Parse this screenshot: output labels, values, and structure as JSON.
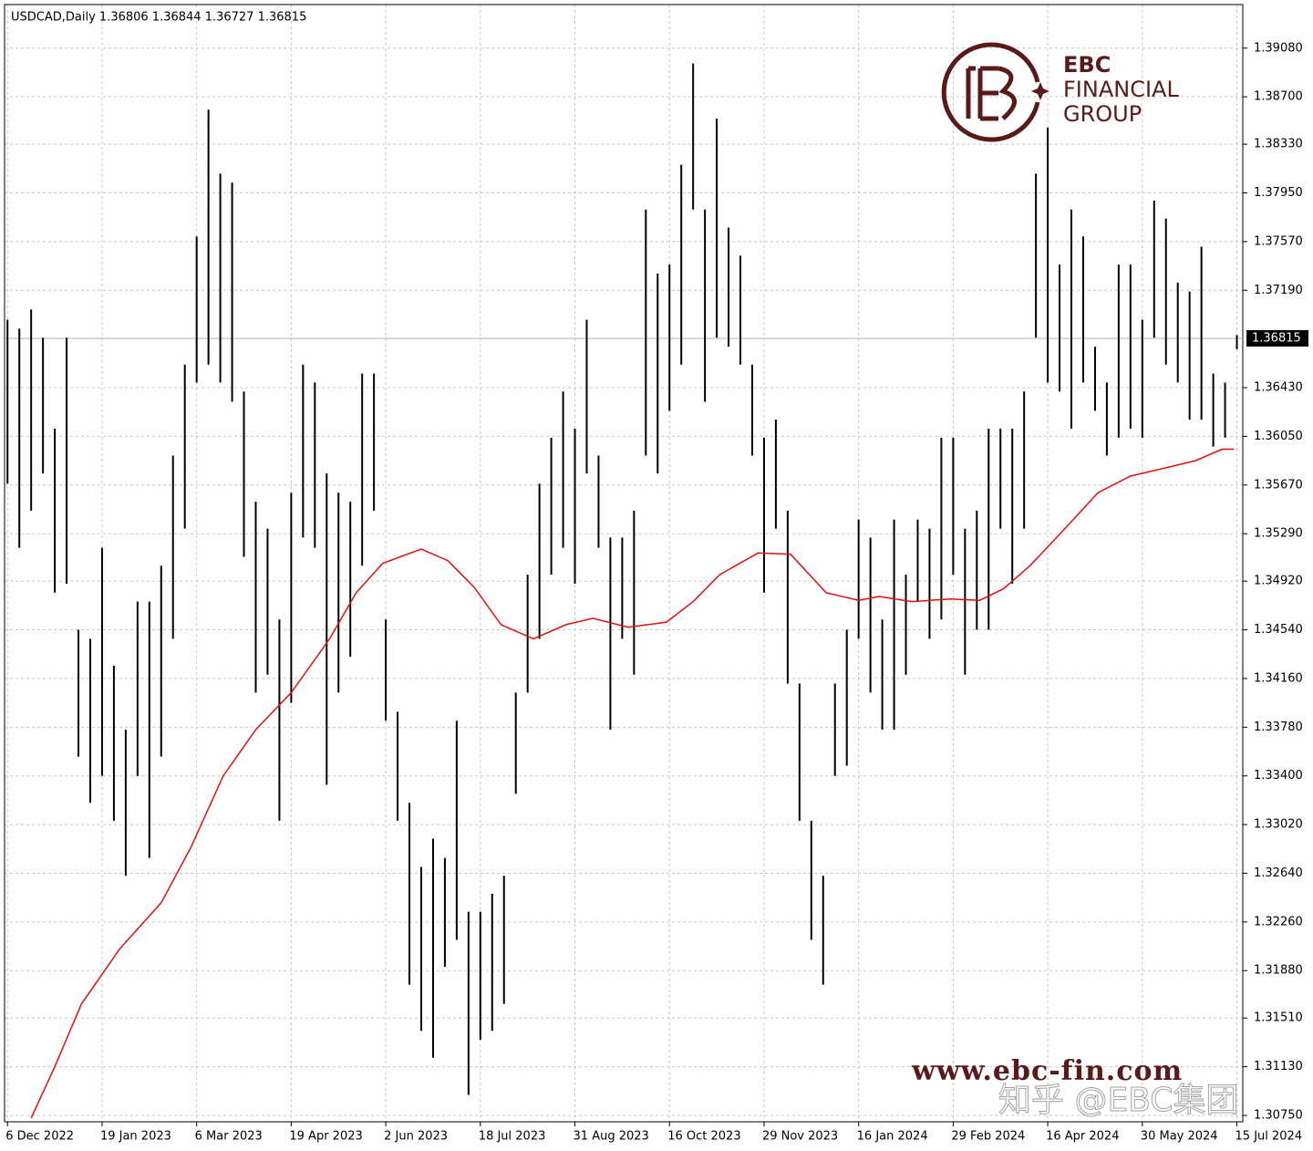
{
  "chart_data": {
    "type": "ohlc",
    "title": "USDCAD,Daily  1.36806 1.36844 1.36727 1.36815",
    "color": "#000000",
    "x": [
      0,
      4,
      8,
      12,
      16,
      20,
      24,
      28,
      32,
      36,
      40,
      44,
      48,
      52,
      56,
      60,
      64,
      68,
      72,
      76,
      80,
      84,
      88,
      92,
      96,
      100,
      104,
      108,
      112,
      116,
      120,
      124,
      128,
      132,
      136,
      140,
      144,
      148,
      152,
      156,
      160,
      164,
      168,
      172,
      176,
      180,
      184,
      188,
      192,
      196,
      200,
      204,
      208,
      212,
      216,
      220,
      224,
      228,
      232,
      236,
      240,
      244,
      248,
      252,
      256,
      260,
      264,
      268,
      272,
      276,
      280,
      284,
      288,
      292,
      296,
      300,
      304,
      308,
      312,
      316,
      320,
      324,
      328,
      332,
      336,
      340,
      344,
      348,
      352,
      356,
      360,
      364,
      368,
      372,
      376,
      380,
      384,
      388,
      392,
      396,
      400,
      404,
      408,
      412,
      416
    ],
    "high": [
      1.3696,
      1.3689,
      1.3704,
      1.3682,
      1.3611,
      1.3682,
      1.3454,
      1.3447,
      1.3518,
      1.3426,
      1.3376,
      1.3476,
      1.3476,
      1.3504,
      1.359,
      1.3661,
      1.3761,
      1.386,
      1.381,
      1.3803,
      1.364,
      1.3554,
      1.3533,
      1.3462,
      1.3561,
      1.3661,
      1.3647,
      1.3576,
      1.3561,
      1.3554,
      1.3654,
      1.3654,
      1.3462,
      1.339,
      1.3319,
      1.3269,
      1.3291,
      1.3276,
      1.3383,
      1.3234,
      1.3234,
      1.3248,
      1.3262,
      1.3405,
      1.3497,
      1.3568,
      1.3604,
      1.364,
      1.3611,
      1.3696,
      1.359,
      1.3526,
      1.3526,
      1.3547,
      1.3782,
      1.3732,
      1.3739,
      1.3817,
      1.3896,
      1.3782,
      1.3853,
      1.3768,
      1.3746,
      1.3661,
      1.3604,
      1.3618,
      1.3547,
      1.3412,
      1.3305,
      1.3262,
      1.3412,
      1.3454,
      1.354,
      1.3526,
      1.3462,
      1.354,
      1.3497,
      1.354,
      1.3533,
      1.3604,
      1.3604,
      1.3533,
      1.3547,
      1.3611,
      1.3611,
      1.3611,
      1.364,
      1.381,
      1.3846,
      1.3739,
      1.3782,
      1.3761,
      1.3675,
      1.3647,
      1.3739,
      1.3739,
      1.3696,
      1.3789,
      1.3775,
      1.3725,
      1.3718,
      1.3753,
      1.3654,
      1.3647,
      1.3684
    ],
    "low": [
      1.3568,
      1.3518,
      1.3547,
      1.3576,
      1.3483,
      1.349,
      1.3355,
      1.3319,
      1.334,
      1.3305,
      1.3262,
      1.334,
      1.3276,
      1.3355,
      1.3447,
      1.3533,
      1.3647,
      1.3661,
      1.3647,
      1.3632,
      1.3511,
      1.3405,
      1.3419,
      1.3305,
      1.3397,
      1.3526,
      1.3518,
      1.3333,
      1.3405,
      1.3433,
      1.3504,
      1.3547,
      1.3383,
      1.3305,
      1.3177,
      1.3141,
      1.312,
      1.3191,
      1.3212,
      1.3091,
      1.3134,
      1.3141,
      1.3162,
      1.3326,
      1.3405,
      1.3447,
      1.3497,
      1.3518,
      1.349,
      1.3576,
      1.3518,
      1.3376,
      1.3447,
      1.3419,
      1.359,
      1.3576,
      1.3625,
      1.3661,
      1.3782,
      1.3632,
      1.3682,
      1.3675,
      1.3661,
      1.359,
      1.3483,
      1.3533,
      1.3412,
      1.3305,
      1.3212,
      1.3177,
      1.334,
      1.3348,
      1.3447,
      1.3405,
      1.3376,
      1.3376,
      1.3419,
      1.3476,
      1.3447,
      1.3462,
      1.3497,
      1.3419,
      1.3454,
      1.3454,
      1.3533,
      1.349,
      1.3533,
      1.3682,
      1.3647,
      1.364,
      1.3611,
      1.3647,
      1.3625,
      1.359,
      1.3604,
      1.3611,
      1.3604,
      1.3682,
      1.3661,
      1.3647,
      1.3618,
      1.3618,
      1.3597,
      1.3604,
      1.3673
    ],
    "ma": {
      "color": "#e01010",
      "x": [
        8,
        16,
        25,
        38,
        52,
        62,
        73,
        84,
        96,
        109,
        118,
        127,
        140,
        149,
        158,
        167,
        178,
        189,
        198,
        210,
        223,
        232,
        241,
        254,
        265,
        277,
        288,
        295,
        306,
        319,
        329,
        337,
        346,
        359,
        369,
        380,
        393,
        402,
        411,
        415
      ],
      "values": [
        1.3073,
        1.3113,
        1.3162,
        1.3205,
        1.3241,
        1.3284,
        1.334,
        1.3376,
        1.3405,
        1.3447,
        1.3483,
        1.3506,
        1.3517,
        1.3508,
        1.3487,
        1.3458,
        1.3447,
        1.3458,
        1.3463,
        1.3456,
        1.346,
        1.3476,
        1.3497,
        1.3514,
        1.3513,
        1.3483,
        1.3477,
        1.348,
        1.3476,
        1.3478,
        1.3477,
        1.3486,
        1.3504,
        1.3536,
        1.3561,
        1.3574,
        1.3581,
        1.3586,
        1.3595,
        1.3595
      ]
    },
    "last_price": {
      "value": 1.36815,
      "label": "1.36815"
    },
    "xlim": [
      -1,
      418
    ],
    "ylim": [
      1.307,
      1.3942
    ],
    "grid": true,
    "xticks": [
      {
        "value": 0,
        "label": "6 Dec 2022"
      },
      {
        "value": 32,
        "label": "19 Jan 2023"
      },
      {
        "value": 64,
        "label": "6 Mar 2023"
      },
      {
        "value": 96,
        "label": "19 Apr 2023"
      },
      {
        "value": 128,
        "label": "2 Jun 2023"
      },
      {
        "value": 160,
        "label": "18 Jul 2023"
      },
      {
        "value": 192,
        "label": "31 Aug 2023"
      },
      {
        "value": 224,
        "label": "16 Oct 2023"
      },
      {
        "value": 256,
        "label": "29 Nov 2023"
      },
      {
        "value": 288,
        "label": "16 Jan 2024"
      },
      {
        "value": 320,
        "label": "29 Feb 2024"
      },
      {
        "value": 352,
        "label": "16 Apr 2024"
      },
      {
        "value": 384,
        "label": "30 May 2024"
      },
      {
        "value": 416,
        "label": "15 Jul 2024"
      }
    ],
    "yticks": [
      {
        "value": 1.3908,
        "label": "1.39080"
      },
      {
        "value": 1.387,
        "label": "1.38700"
      },
      {
        "value": 1.3833,
        "label": "1.38330"
      },
      {
        "value": 1.3795,
        "label": "1.37950"
      },
      {
        "value": 1.3757,
        "label": "1.37570"
      },
      {
        "value": 1.3719,
        "label": "1.37190"
      },
      {
        "value": 1.3643,
        "label": "1.36430"
      },
      {
        "value": 1.3605,
        "label": "1.36050"
      },
      {
        "value": 1.3567,
        "label": "1.35670"
      },
      {
        "value": 1.3529,
        "label": "1.35290"
      },
      {
        "value": 1.3492,
        "label": "1.34920"
      },
      {
        "value": 1.3454,
        "label": "1.34540"
      },
      {
        "value": 1.3416,
        "label": "1.34160"
      },
      {
        "value": 1.3378,
        "label": "1.33780"
      },
      {
        "value": 1.334,
        "label": "1.33400"
      },
      {
        "value": 1.3302,
        "label": "1.33020"
      },
      {
        "value": 1.3264,
        "label": "1.32640"
      },
      {
        "value": 1.3226,
        "label": "1.32260"
      },
      {
        "value": 1.3188,
        "label": "1.31880"
      },
      {
        "value": 1.3151,
        "label": "1.31510"
      },
      {
        "value": 1.3113,
        "label": "1.31130"
      },
      {
        "value": 1.3075,
        "label": "1.30750"
      }
    ]
  },
  "branding": {
    "logo_lines": [
      "EBC",
      "FINANCIAL",
      "GROUP"
    ],
    "url": "www.ebc-fin.com",
    "credit": "知乎 @EBC集团"
  }
}
